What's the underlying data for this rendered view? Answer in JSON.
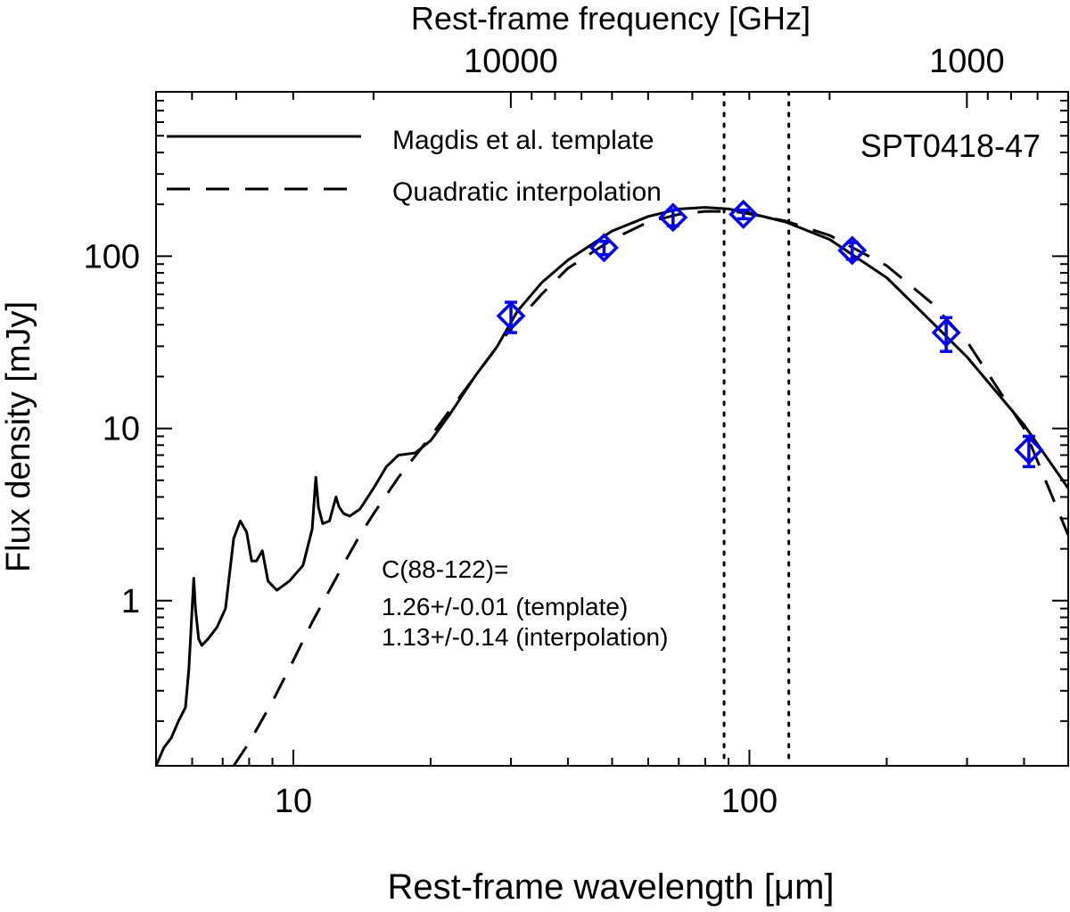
{
  "chart_data": {
    "type": "line",
    "title": "SPT0418-47",
    "xlabel": "Rest-frame wavelength [μm]",
    "ylabel": "Flux density [mJy]",
    "x2label": "Rest-frame frequency [GHz]",
    "xscale": "log",
    "yscale": "log",
    "xlim": [
      5,
      500
    ],
    "ylim": [
      0.11,
      900
    ],
    "xticks": [
      {
        "value": 10,
        "label": "10"
      },
      {
        "value": 100,
        "label": "100"
      }
    ],
    "yticks": [
      {
        "value": 1,
        "label": "1"
      },
      {
        "value": 10,
        "label": "10"
      },
      {
        "value": 100,
        "label": "100"
      }
    ],
    "x2ticks": [
      {
        "value": 10000,
        "label": "10000"
      },
      {
        "value": 1000,
        "label": "1000"
      }
    ],
    "colors": {
      "data": "#0000ee",
      "line": "#000000"
    },
    "legend": [
      {
        "label": "Magdis et al. template",
        "style": "solid"
      },
      {
        "label": "Quadratic interpolation",
        "style": "dashed"
      }
    ],
    "vlines": [
      88,
      122
    ],
    "annotation": [
      "C(88-122)=",
      "1.26+/-0.01 (template)",
      "1.13+/-0.14 (interpolation)"
    ],
    "series": [
      {
        "name": "Magdis et al. template",
        "style": "solid",
        "x": [
          5.0,
          5.2,
          5.4,
          5.6,
          5.8,
          5.9,
          6.05,
          6.1,
          6.2,
          6.3,
          6.5,
          6.8,
          7.1,
          7.4,
          7.65,
          7.9,
          8.1,
          8.3,
          8.55,
          8.8,
          9.2,
          9.8,
          10.5,
          11.0,
          11.2,
          11.35,
          11.6,
          12.0,
          12.4,
          12.6,
          12.9,
          13.3,
          14.0,
          15.0,
          16.0,
          17.0,
          18.5,
          20.0,
          22.0,
          25.0,
          28.0,
          31.0,
          35.0,
          40.0,
          50.0,
          60.0,
          70.0,
          80.0,
          90.0,
          100.0,
          120.0,
          150.0,
          200.0,
          250.0,
          300.0,
          400.0,
          500.0
        ],
        "y": [
          0.11,
          0.14,
          0.16,
          0.2,
          0.24,
          0.4,
          1.35,
          0.9,
          0.6,
          0.55,
          0.6,
          0.7,
          0.9,
          2.3,
          2.9,
          2.5,
          1.7,
          1.7,
          1.95,
          1.3,
          1.15,
          1.3,
          1.6,
          2.6,
          5.2,
          3.5,
          2.8,
          2.9,
          4.0,
          3.5,
          3.2,
          3.1,
          3.4,
          4.5,
          6.0,
          7.0,
          7.2,
          8.5,
          12.0,
          20.0,
          30.0,
          48.0,
          70.0,
          95.0,
          140.0,
          170.0,
          188.0,
          192.0,
          188.0,
          178.0,
          158.0,
          125.0,
          75.0,
          42.0,
          26.0,
          10.5,
          4.5
        ]
      },
      {
        "name": "Quadratic interpolation",
        "style": "dashed",
        "x": [
          7.4,
          8.0,
          9.0,
          10.0,
          11.0,
          12.0,
          13.0,
          14.0,
          15.0,
          17.0,
          20.0,
          25.0,
          30.0,
          35.0,
          40.0,
          50.0,
          60.0,
          70.0,
          80.0,
          88.0,
          95.0,
          100.0,
          120.0,
          150.0,
          200.0,
          250.0,
          300.0,
          400.0,
          500.0
        ],
        "y": [
          0.11,
          0.15,
          0.26,
          0.45,
          0.75,
          1.15,
          1.7,
          2.4,
          3.2,
          5.2,
          9.0,
          20.0,
          38.0,
          60.0,
          85.0,
          125.0,
          158.0,
          175.0,
          182.0,
          182.0,
          180.0,
          176.0,
          160.0,
          132.0,
          88.0,
          54.0,
          32.0,
          10.0,
          2.4
        ]
      },
      {
        "name": "Measurements",
        "style": "markers",
        "x": [
          30.0,
          48.0,
          68.0,
          97.0,
          168.0,
          270.0,
          410.0
        ],
        "y": [
          45.0,
          112.0,
          168.0,
          175.0,
          108.0,
          36.0,
          7.5
        ],
        "err": [
          9.0,
          10.0,
          18.0,
          10.0,
          12.0,
          8.0,
          1.5
        ]
      }
    ]
  }
}
